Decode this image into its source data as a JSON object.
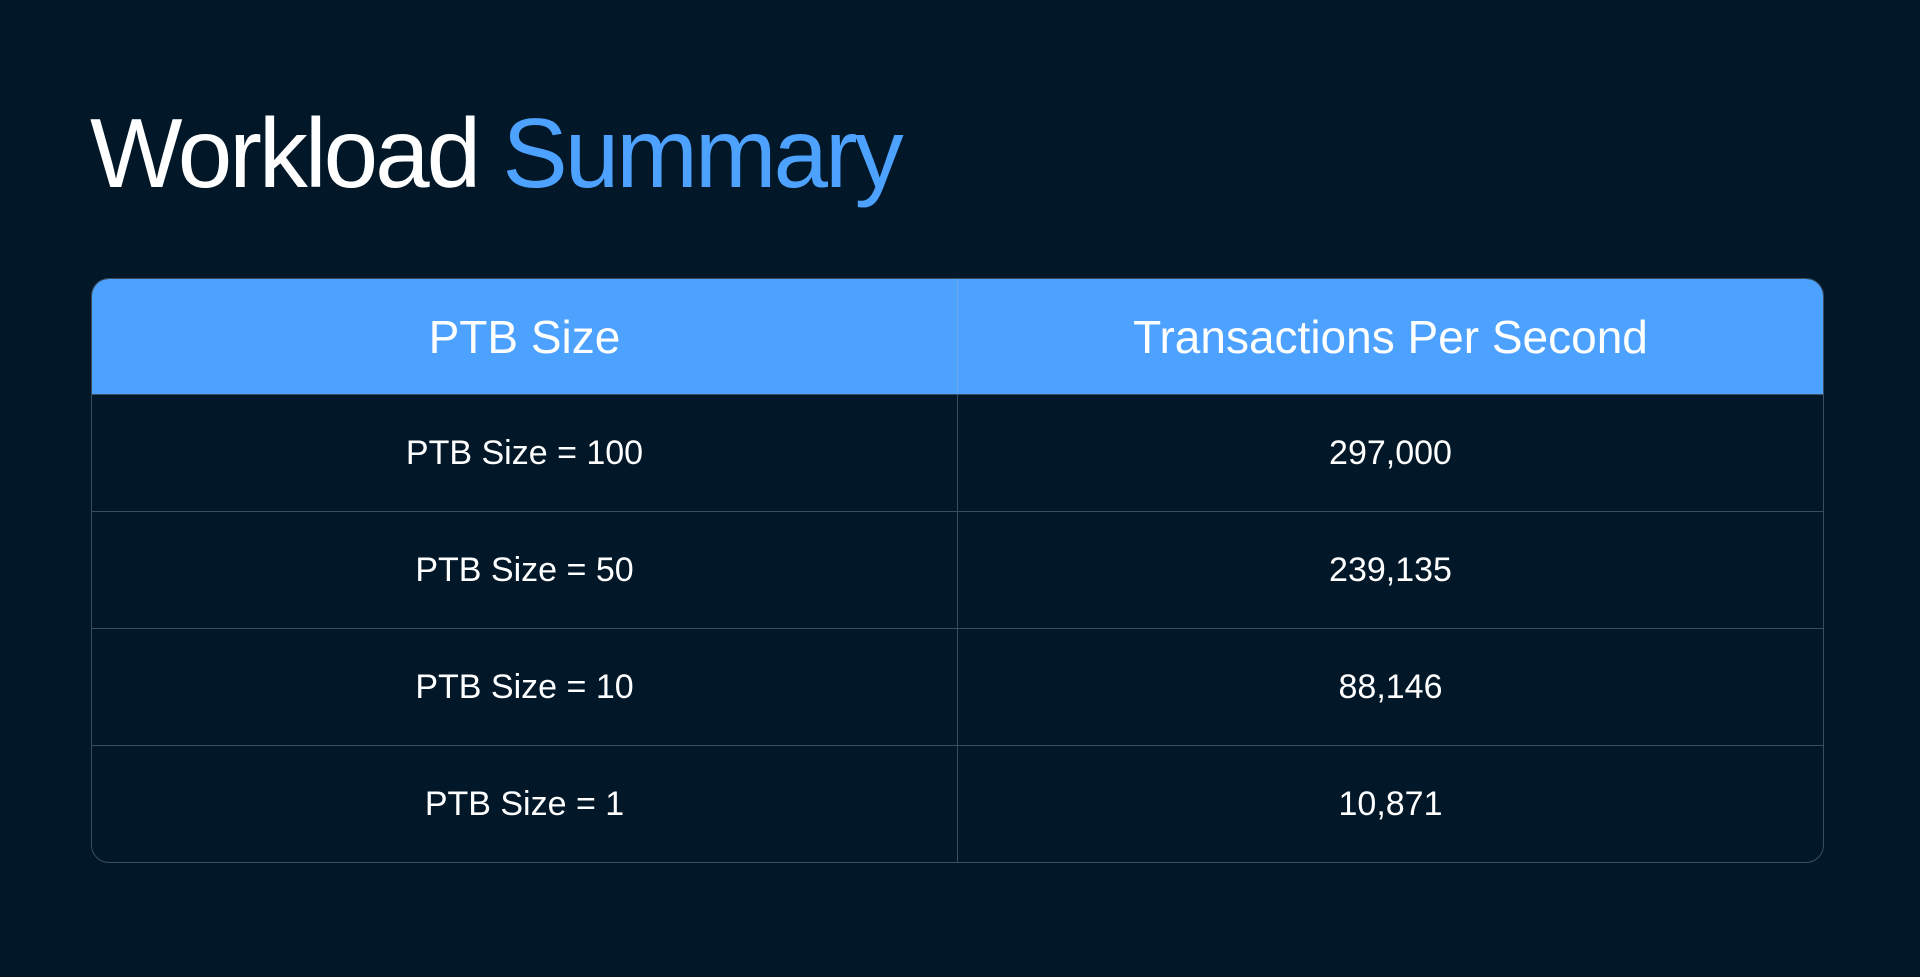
{
  "title": {
    "part1": "Workload",
    "part2": "Summary"
  },
  "colors": {
    "background": "#021829",
    "accent": "#4DA2FF",
    "border": "#3d4c5e"
  },
  "table": {
    "headers": [
      "PTB Size",
      "Transactions Per Second"
    ],
    "rows": [
      [
        "PTB Size = 100",
        "297,000"
      ],
      [
        "PTB Size = 50",
        "239,135"
      ],
      [
        "PTB Size = 10",
        "88,146"
      ],
      [
        "PTB Size = 1",
        "10,871"
      ]
    ]
  }
}
